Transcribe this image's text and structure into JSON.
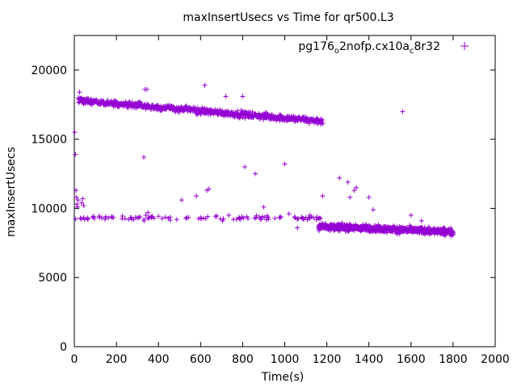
{
  "chart_data": {
    "type": "scatter",
    "title": "maxInsertUsecs vs Time for qr500.L3",
    "xlabel": "Time(s)",
    "ylabel": "maxInsertUsecs",
    "xlim": [
      0,
      2000
    ],
    "ylim": [
      0,
      22500
    ],
    "x_ticks": [
      0,
      200,
      400,
      600,
      800,
      1000,
      1200,
      1400,
      1600,
      1800,
      2000
    ],
    "y_ticks": [
      0,
      5000,
      10000,
      15000,
      20000
    ],
    "grid": false,
    "legend_position": "top-right",
    "series": [
      {
        "name_main": "pg176",
        "name_sub1": "o",
        "name_mid": "2nofp.cx10a",
        "name_sub2": "c",
        "name_tail": "8r32",
        "color": "#9400d3",
        "marker": "plus",
        "upper_band": {
          "x_start": 20,
          "x_end": 1180,
          "y_start": 17800,
          "y_end": 16300,
          "spread": 350,
          "count": 700
        },
        "lower_band_sparse": {
          "x_start": 0,
          "x_end": 1170,
          "y": 9300,
          "spread": 250,
          "count": 110
        },
        "lower_band_dense": {
          "x_start": 1160,
          "x_end": 1800,
          "y_start": 8700,
          "y_end": 8300,
          "spread": 350,
          "count": 800
        },
        "points": [
          [
            2,
            15500
          ],
          [
            5,
            13900
          ],
          [
            8,
            11300
          ],
          [
            10,
            10800
          ],
          [
            12,
            10300
          ],
          [
            15,
            10100
          ],
          [
            18,
            10600
          ],
          [
            20,
            18000
          ],
          [
            25,
            18400
          ],
          [
            30,
            17900
          ],
          [
            35,
            10400
          ],
          [
            40,
            10700
          ],
          [
            45,
            10200
          ],
          [
            330,
            13700
          ],
          [
            335,
            18600
          ],
          [
            345,
            18600
          ],
          [
            350,
            9700
          ],
          [
            340,
            9500
          ],
          [
            510,
            10600
          ],
          [
            580,
            10900
          ],
          [
            620,
            18900
          ],
          [
            630,
            11300
          ],
          [
            640,
            11400
          ],
          [
            720,
            18100
          ],
          [
            800,
            18100
          ],
          [
            810,
            13000
          ],
          [
            860,
            12500
          ],
          [
            900,
            10100
          ],
          [
            1000,
            13200
          ],
          [
            1020,
            9600
          ],
          [
            1060,
            8600
          ],
          [
            1090,
            9200
          ],
          [
            1120,
            9500
          ],
          [
            1180,
            10900
          ],
          [
            1260,
            12200
          ],
          [
            1300,
            11900
          ],
          [
            1310,
            10800
          ],
          [
            1330,
            11300
          ],
          [
            1340,
            11500
          ],
          [
            1400,
            10800
          ],
          [
            1420,
            9900
          ],
          [
            1560,
            17000
          ],
          [
            1600,
            9500
          ],
          [
            1650,
            9100
          ]
        ]
      }
    ]
  }
}
